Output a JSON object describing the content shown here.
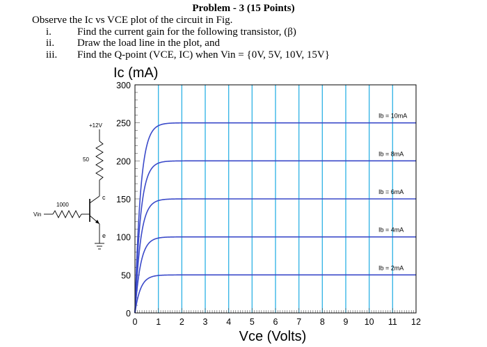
{
  "problem": {
    "title": "Problem - 3 (15 Points)",
    "intro": "Observe the Ic vs VCE plot of the circuit in Fig.",
    "items": [
      {
        "num": "i.",
        "text": "Find the current gain for the following transistor, (β)"
      },
      {
        "num": "ii.",
        "text": "Draw the load line in the plot, and"
      },
      {
        "num": "iii.",
        "text": "Find the Q-point (VCE, IC) when Vin = {0V, 5V, 10V, 15V}"
      }
    ]
  },
  "circuit": {
    "supply_label": "+12V",
    "collector_resistor_label": "50",
    "base_resistor_label": "1000",
    "input_label": "Vin",
    "collector_node_label": "c",
    "emitter_node_label": "e"
  },
  "chart_data": {
    "type": "line",
    "ylabel": "Ic (mA)",
    "xlabel": "Vce (Volts)",
    "xlim": [
      0,
      12
    ],
    "ylim": [
      0,
      300
    ],
    "x_ticks": [
      "0",
      "1",
      "2",
      "3",
      "4",
      "5",
      "6",
      "7",
      "8",
      "9",
      "10",
      "11",
      "12"
    ],
    "y_ticks": [
      "0",
      "50",
      "100",
      "150",
      "200",
      "250",
      "300"
    ],
    "grid": true,
    "line_color": "#3a49c9",
    "grid_color": "#39b6e6",
    "series": [
      {
        "name": "Ib = 2mA",
        "saturation_current": 50
      },
      {
        "name": "Ib = 4mA",
        "saturation_current": 100
      },
      {
        "name": "Ib = 6mA",
        "saturation_current": 150
      },
      {
        "name": "Ib = 8mA",
        "saturation_current": 200
      },
      {
        "name": "Ib = 10mA",
        "saturation_current": 250
      }
    ]
  }
}
